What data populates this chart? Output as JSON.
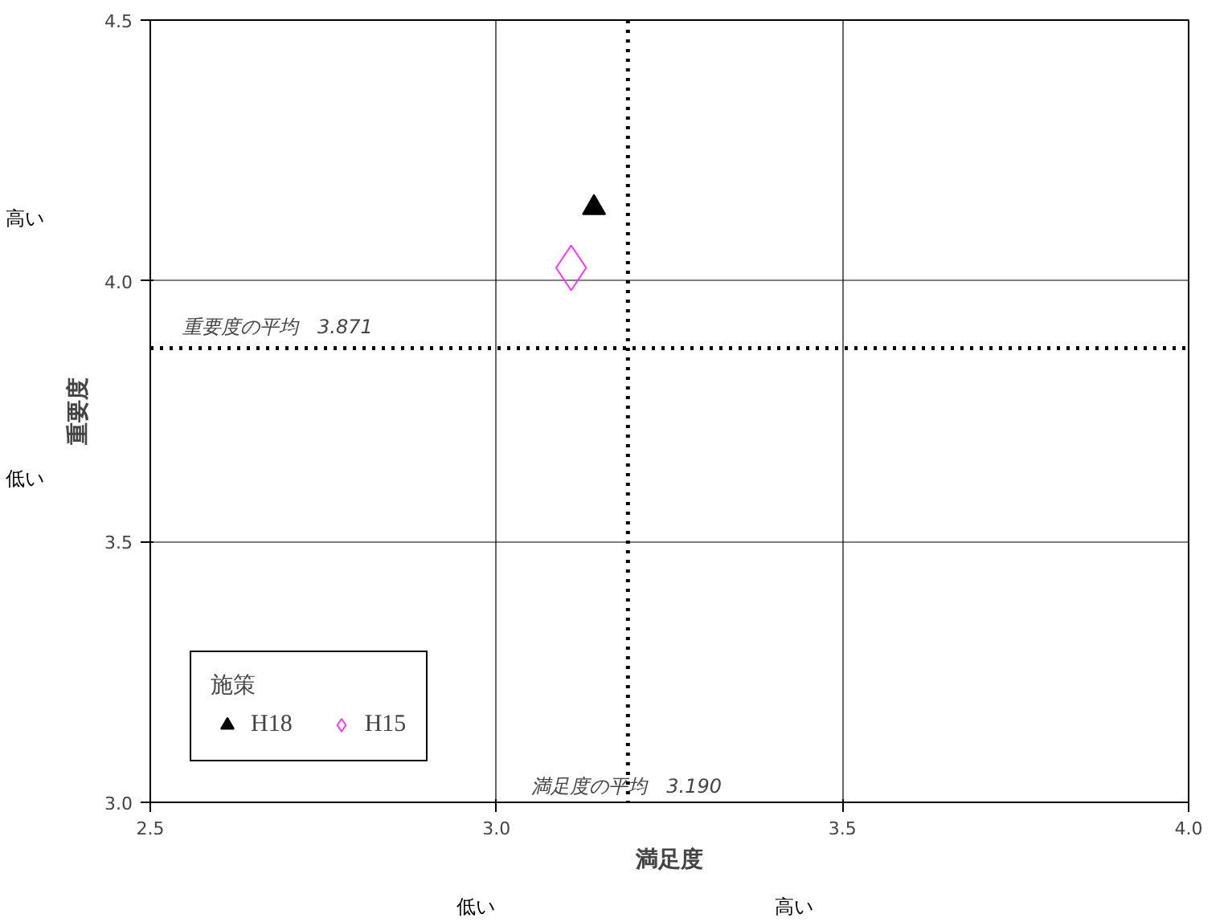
{
  "chart_data": {
    "type": "scatter",
    "xlabel": "満足度",
    "ylabel": "重要度",
    "legend_title": "施策",
    "xlim": [
      2.5,
      4.0
    ],
    "ylim": [
      3.0,
      4.5
    ],
    "xticks": [
      {
        "value": 2.5,
        "label": "2.5"
      },
      {
        "value": 3.0,
        "label": "3.0"
      },
      {
        "value": 3.5,
        "label": "3.5"
      },
      {
        "value": 4.0,
        "label": "4.0"
      }
    ],
    "yticks": [
      {
        "value": 3.0,
        "label": "3.0"
      },
      {
        "value": 3.5,
        "label": "3.5"
      },
      {
        "value": 4.0,
        "label": "4.0"
      },
      {
        "value": 4.5,
        "label": "4.5"
      }
    ],
    "grid": true,
    "legend": "bottom left",
    "series": [
      {
        "name": "H18",
        "color": "#000000",
        "marker": "triangle",
        "x": [
          3.141
        ],
        "values": [
          4.14
        ]
      },
      {
        "name": "H15",
        "color": "#ff33ff",
        "marker": "diamond",
        "x": [
          3.108
        ],
        "values": [
          4.025
        ]
      }
    ],
    "ref_lines": [
      {
        "axis": "x",
        "value": 3.19,
        "label": "満足度の平均　3.190",
        "line_style": "dotted",
        "color": "#000000"
      },
      {
        "axis": "y",
        "value": 3.871,
        "label": "重要度の平均　3.871",
        "line_style": "dotted",
        "color": "#000000"
      }
    ],
    "annotations": [
      "高い",
      "低い",
      "低い",
      "高い"
    ]
  }
}
